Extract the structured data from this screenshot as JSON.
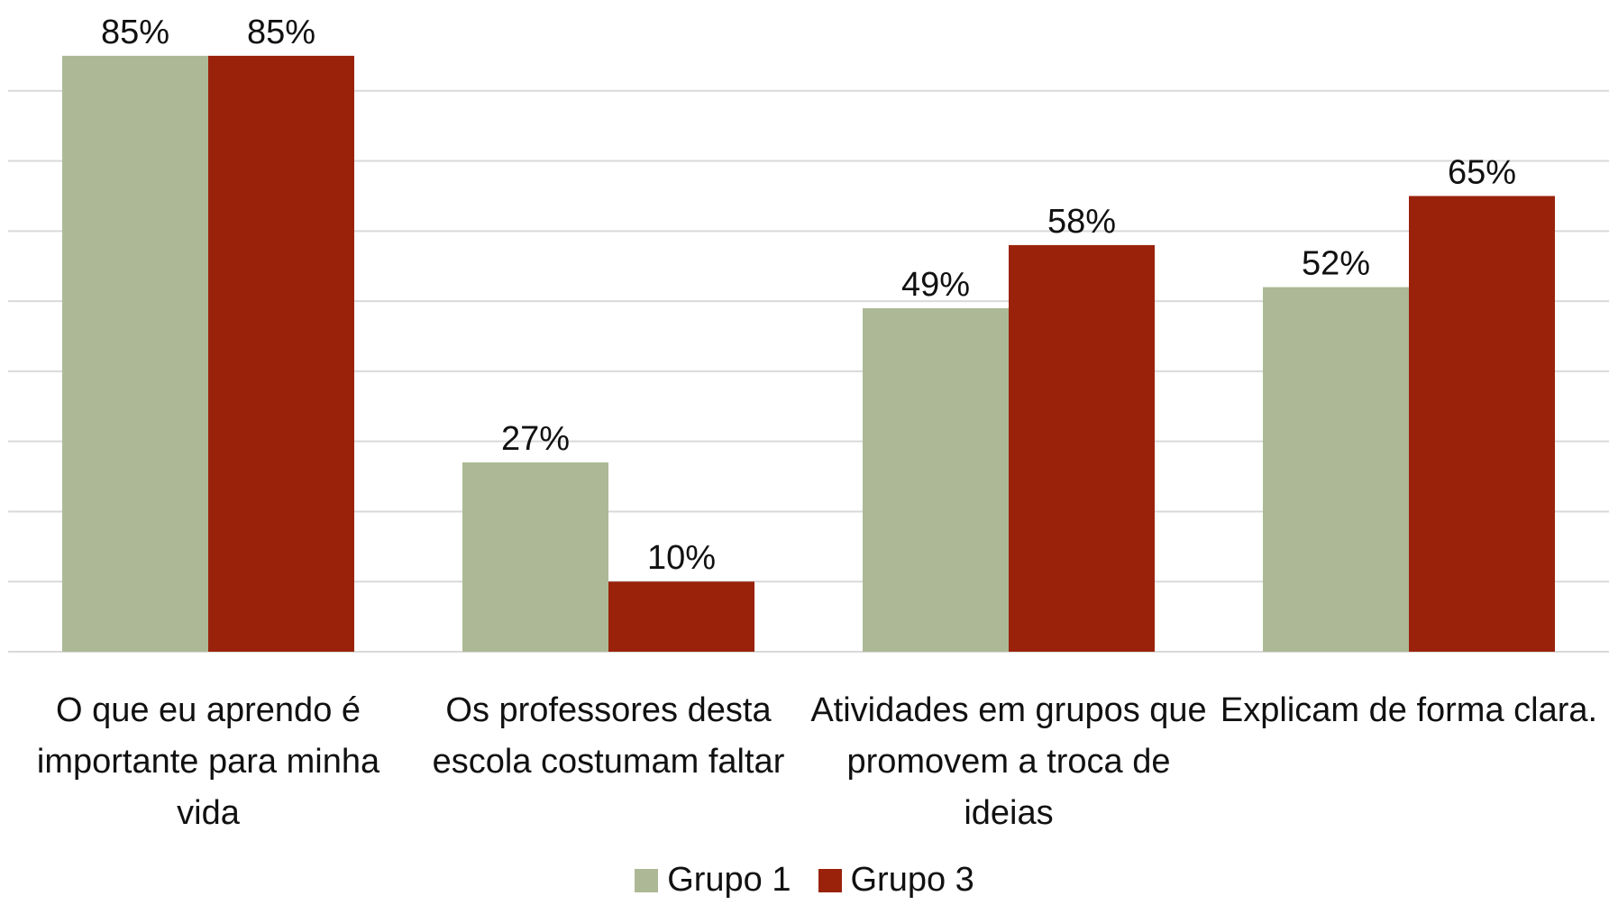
{
  "chart_data": {
    "type": "bar",
    "categories": [
      "O que eu aprendo é importante para minha vida",
      "Os professores desta escola costumam faltar",
      "Atividades em grupos que promovem a troca de ideias",
      "Explicam de forma clara."
    ],
    "series": [
      {
        "name": "Grupo 1",
        "color": "#adb996",
        "values": [
          85,
          27,
          49,
          52
        ],
        "value_labels": [
          "85%",
          "27%",
          "49%",
          "52%"
        ]
      },
      {
        "name": "Grupo 3",
        "color": "#9a220b",
        "values": [
          85,
          10,
          58,
          65
        ],
        "value_labels": [
          "85%",
          "10%",
          "58%",
          "65%"
        ]
      }
    ],
    "ylim": [
      0,
      90
    ],
    "yticks": [
      0,
      10,
      20,
      30,
      40,
      50,
      60,
      70,
      80
    ],
    "grid": true
  }
}
